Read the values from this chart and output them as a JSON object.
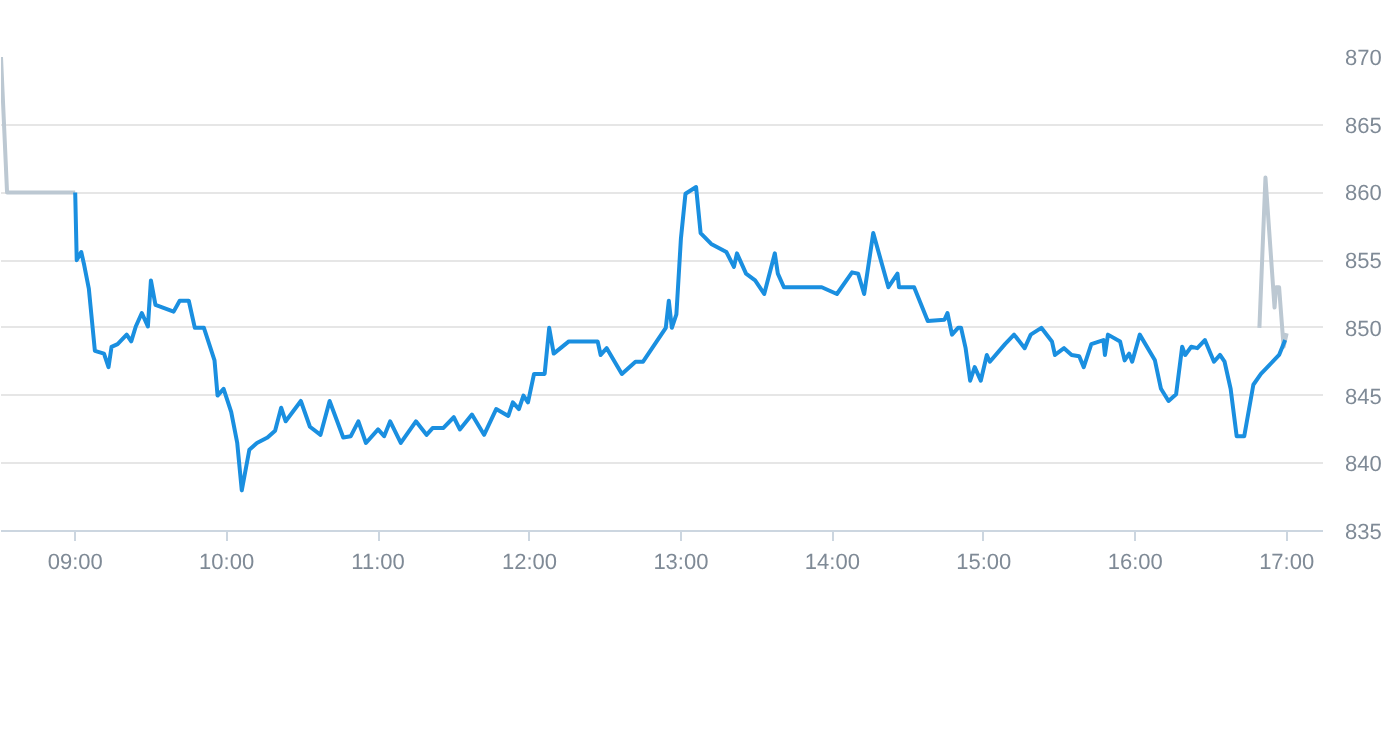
{
  "chart_data": {
    "type": "line",
    "xlim": [
      8.51,
      17.24
    ],
    "ylim": [
      835,
      870
    ],
    "xticks": [
      {
        "value": 9,
        "label": "09:00"
      },
      {
        "value": 10,
        "label": "10:00"
      },
      {
        "value": 11,
        "label": "11:00"
      },
      {
        "value": 12,
        "label": "12:00"
      },
      {
        "value": 13,
        "label": "13:00"
      },
      {
        "value": 14,
        "label": "14:00"
      },
      {
        "value": 15,
        "label": "15:00"
      },
      {
        "value": 16,
        "label": "16:00"
      },
      {
        "value": 17,
        "label": "17:00"
      }
    ],
    "yticks": [
      835,
      840,
      845,
      850,
      855,
      860,
      865,
      870
    ],
    "grid": "y",
    "marker": "none",
    "line_style": "solid",
    "series": [
      {
        "color": "#bcc8d2",
        "x": [
          8.51,
          8.55,
          9.0,
          null,
          16.82,
          16.86,
          16.92,
          16.93,
          16.95,
          16.98,
          17.0
        ],
        "values": [
          870,
          860,
          860,
          null,
          850,
          861.1,
          851.5,
          853,
          853,
          848.6,
          849.6
        ]
      },
      {
        "color": "#1a8fe0",
        "x": [
          9.0,
          9.01,
          9.04,
          9.06,
          9.09,
          9.13,
          9.19,
          9.22,
          9.24,
          9.28,
          9.34,
          9.37,
          9.4,
          9.44,
          9.48,
          9.5,
          9.53,
          9.65,
          9.69,
          9.75,
          9.79,
          9.85,
          9.92,
          9.94,
          9.98,
          10.03,
          10.07,
          10.1,
          10.15,
          10.2,
          10.27,
          10.32,
          10.36,
          10.39,
          10.49,
          10.55,
          10.62,
          10.68,
          10.77,
          10.82,
          10.87,
          10.92,
          11.0,
          11.04,
          11.08,
          11.15,
          11.25,
          11.32,
          11.36,
          11.43,
          11.5,
          11.54,
          11.62,
          11.7,
          11.78,
          11.86,
          11.89,
          11.93,
          11.96,
          11.99,
          12.03,
          12.1,
          12.13,
          12.16,
          12.26,
          12.45,
          12.47,
          12.51,
          12.61,
          12.7,
          12.75,
          12.84,
          12.9,
          12.92,
          12.94,
          12.97,
          13.0,
          13.03,
          13.1,
          13.13,
          13.2,
          13.3,
          13.35,
          13.37,
          13.43,
          13.49,
          13.55,
          13.62,
          13.64,
          13.68,
          13.93,
          14.03,
          14.13,
          14.17,
          14.21,
          14.27,
          14.37,
          14.43,
          14.44,
          14.54,
          14.63,
          14.74,
          14.76,
          14.79,
          14.83,
          14.85,
          14.88,
          14.91,
          14.94,
          14.98,
          15.02,
          15.04,
          15.14,
          15.2,
          15.27,
          15.31,
          15.38,
          15.45,
          15.47,
          15.53,
          15.58,
          15.63,
          15.66,
          15.71,
          15.79,
          15.8,
          15.82,
          15.9,
          15.93,
          15.96,
          15.98,
          16.03,
          16.13,
          16.17,
          16.22,
          16.27,
          16.31,
          16.33,
          16.37,
          16.41,
          16.46,
          16.52,
          16.56,
          16.59,
          16.63,
          16.67,
          16.72,
          16.78,
          16.83,
          16.95,
          16.99
        ],
        "values": [
          860,
          855,
          855.6,
          854.6,
          852.9,
          848.3,
          848.1,
          847.1,
          848.6,
          848.8,
          849.5,
          849,
          850.1,
          851.1,
          850.1,
          853.5,
          851.7,
          851.2,
          852,
          852,
          850,
          850,
          847.6,
          845,
          845.5,
          843.8,
          841.5,
          838,
          841,
          841.5,
          841.9,
          842.4,
          844.1,
          843.1,
          844.6,
          842.7,
          842.1,
          844.6,
          841.9,
          842,
          843.1,
          841.5,
          842.5,
          842,
          843.1,
          841.5,
          843.1,
          842.1,
          842.6,
          842.6,
          843.4,
          842.5,
          843.6,
          842.1,
          844,
          843.5,
          844.5,
          844,
          845,
          844.5,
          846.6,
          846.6,
          850,
          848.1,
          849,
          849,
          848,
          848.5,
          846.6,
          847.5,
          847.5,
          849,
          850,
          852,
          850,
          851,
          856.6,
          859.9,
          860.4,
          857,
          856.2,
          855.6,
          854.5,
          855.5,
          854,
          853.5,
          852.5,
          855.5,
          854,
          853,
          853,
          852.5,
          854.1,
          854,
          852.5,
          857,
          853,
          854,
          853,
          853,
          850.5,
          850.6,
          851.1,
          849.5,
          850,
          850,
          848.5,
          846.1,
          847.1,
          846.1,
          848,
          847.5,
          848.8,
          849.5,
          848.5,
          849.5,
          850,
          849,
          848,
          848.5,
          848,
          847.9,
          847.1,
          848.8,
          849.1,
          848,
          849.5,
          849,
          847.6,
          848.1,
          847.5,
          849.5,
          847.6,
          845.5,
          844.6,
          845.1,
          848.6,
          848,
          848.6,
          848.5,
          849.1,
          847.5,
          848,
          847.5,
          845.5,
          842,
          842,
          845.8,
          846.6,
          848,
          849.1
        ]
      }
    ]
  }
}
